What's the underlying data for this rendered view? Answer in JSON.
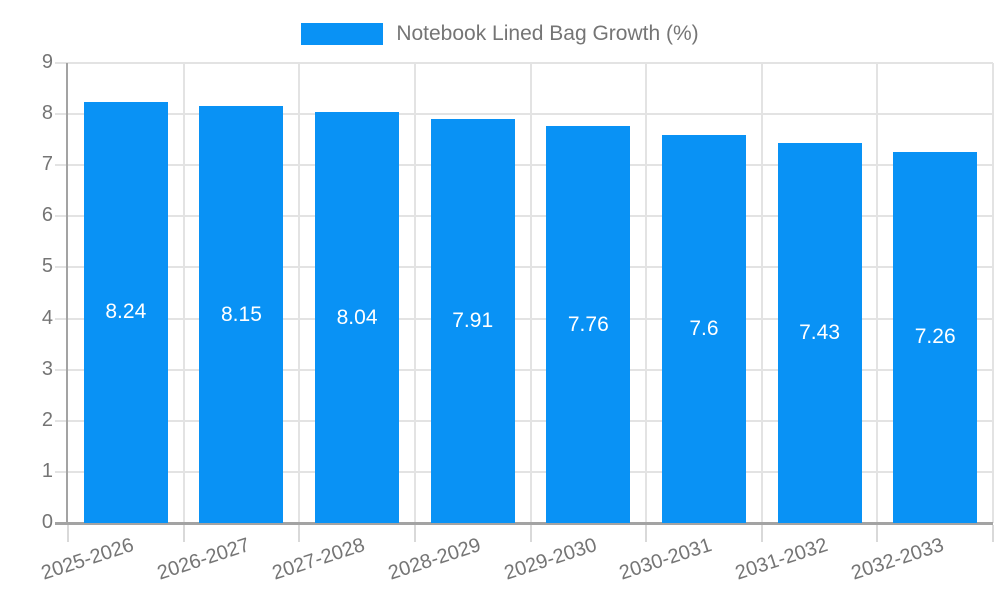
{
  "colors": {
    "bar": "#0992f5",
    "text": "#757575",
    "grid": "#e3e3e3",
    "axis": "#a3a3a3",
    "tick": "#d9d9d9",
    "value_label": "#ffffff",
    "background": "#ffffff"
  },
  "legend": {
    "label": "Notebook Lined Bag Growth (%)"
  },
  "chart_data": {
    "type": "bar",
    "title": "Notebook Lined Bag Growth (%)",
    "categories": [
      "2025-2026",
      "2026-2027",
      "2027-2028",
      "2028-2029",
      "2029-2030",
      "2030-2031",
      "2031-2032",
      "2032-2033"
    ],
    "values": [
      8.24,
      8.15,
      8.04,
      7.91,
      7.76,
      7.6,
      7.43,
      7.26
    ],
    "value_labels": [
      "8.24",
      "8.15",
      "8.04",
      "7.91",
      "7.76",
      "7.6",
      "7.43",
      "7.26"
    ],
    "xlabel": "",
    "ylabel": "",
    "ylim": [
      0,
      9
    ],
    "yticks": [
      "0",
      "1",
      "2",
      "3",
      "4",
      "5",
      "6",
      "7",
      "8",
      "9"
    ],
    "grid": true,
    "legend_position": "top",
    "x_label_rotation_deg": -18
  }
}
